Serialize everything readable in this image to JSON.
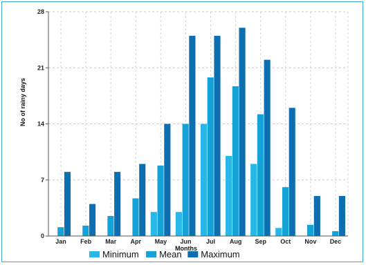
{
  "chart_data": {
    "type": "bar",
    "title": "",
    "xlabel": "Months",
    "ylabel": "No of rainy days",
    "categories": [
      "Jan",
      "Feb",
      "Mar",
      "Apr",
      "May",
      "Jun",
      "Jul",
      "Aug",
      "Sep",
      "Oct",
      "Nov",
      "Dec"
    ],
    "ylim": [
      0,
      28
    ],
    "yticks": [
      "0",
      "7",
      "14",
      "21",
      "28"
    ],
    "grid": true,
    "legend_position": "bottom",
    "series": [
      {
        "name": "Minimum",
        "color": "#29b6e8",
        "values": [
          0,
          0,
          0,
          0,
          3,
          3,
          14,
          10,
          9,
          1,
          0,
          0
        ]
      },
      {
        "name": "Mean",
        "color": "#15a2d6",
        "values": [
          1.1,
          1.3,
          2.5,
          4.7,
          8.8,
          14,
          19.8,
          18.7,
          15.2,
          6.1,
          1.4,
          0.6
        ]
      },
      {
        "name": "Maximum",
        "color": "#0d6fb0",
        "values": [
          8,
          4,
          8,
          9,
          14,
          25,
          25,
          26,
          22,
          16,
          5,
          5
        ]
      }
    ]
  }
}
